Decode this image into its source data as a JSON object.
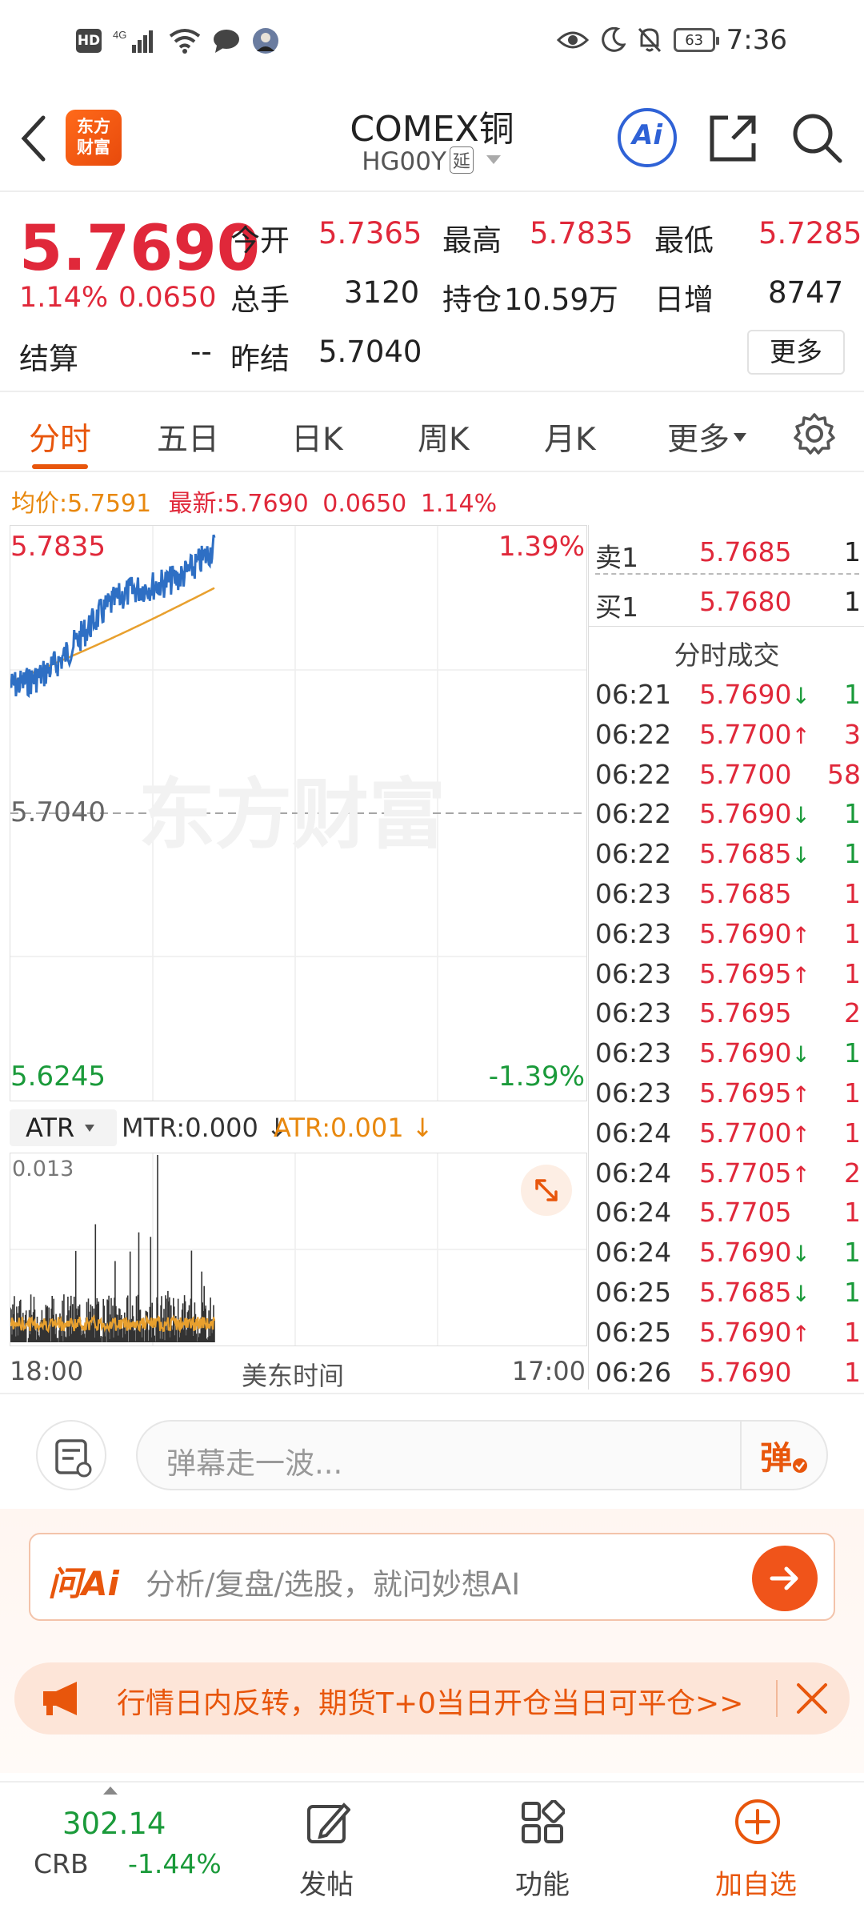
{
  "status_bar": {
    "time": "7:36",
    "battery": "63",
    "hd": "HD",
    "net": "4G"
  },
  "header": {
    "title": "COMEX铜",
    "code": "HG00Y",
    "delay_badge": "延",
    "logo_line1": "东方",
    "logo_line2": "财富",
    "ai_label": "Ai"
  },
  "quote": {
    "price": "5.7690",
    "pct": "1.14%",
    "chg": "0.0650",
    "open_label": "今开",
    "open": "5.7365",
    "high_label": "最高",
    "high": "5.7835",
    "low_label": "最低",
    "low": "5.7285",
    "volume_label": "总手",
    "volume": "3120",
    "oi_label": "持仓",
    "oi": "10.59万",
    "daily_inc_label": "日增",
    "daily_inc": "8747",
    "settle_label": "结算",
    "settle": "--",
    "prev_settle_label": "昨结",
    "prev_settle": "5.7040",
    "more_label": "更多"
  },
  "tabs": [
    "分时",
    "五日",
    "日K",
    "周K",
    "月K",
    "更多"
  ],
  "avg_line": {
    "avg_label": "均价:",
    "avg": "5.7591",
    "latest_label": "最新:",
    "latest": "5.7690",
    "chg": "0.0650",
    "pct": "1.14%"
  },
  "chart": {
    "top_price": "5.7835",
    "top_pct": "1.39%",
    "mid_price": "5.7040",
    "bottom_price": "5.6245",
    "bottom_pct": "-1.39%",
    "watermark": "东方财富",
    "ymax": 5.7835,
    "ymin": 5.6245
  },
  "atr": {
    "selector": "ATR",
    "mtr_label": "MTR:0.000",
    "atr_label": "ATR:0.001",
    "max_label": "0.013"
  },
  "time_axis": {
    "start": "18:00",
    "mid": "美东时间",
    "end": "17:00"
  },
  "book": {
    "ask_label": "卖1",
    "ask_price": "5.7685",
    "ask_vol": "1",
    "bid_label": "买1",
    "bid_price": "5.7680",
    "bid_vol": "1",
    "trades_title": "分时成交",
    "trades": [
      {
        "time": "06:21",
        "price": "5.7690",
        "dir": "down",
        "vol": "1"
      },
      {
        "time": "06:22",
        "price": "5.7700",
        "dir": "up",
        "vol": "3"
      },
      {
        "time": "06:22",
        "price": "5.7700",
        "dir": "",
        "vol": "58"
      },
      {
        "time": "06:22",
        "price": "5.7690",
        "dir": "down",
        "vol": "1"
      },
      {
        "time": "06:22",
        "price": "5.7685",
        "dir": "down",
        "vol": "1"
      },
      {
        "time": "06:23",
        "price": "5.7685",
        "dir": "",
        "vol": "1"
      },
      {
        "time": "06:23",
        "price": "5.7690",
        "dir": "up",
        "vol": "1"
      },
      {
        "time": "06:23",
        "price": "5.7695",
        "dir": "up",
        "vol": "1"
      },
      {
        "time": "06:23",
        "price": "5.7695",
        "dir": "",
        "vol": "2"
      },
      {
        "time": "06:23",
        "price": "5.7690",
        "dir": "down",
        "vol": "1"
      },
      {
        "time": "06:23",
        "price": "5.7695",
        "dir": "up",
        "vol": "1"
      },
      {
        "time": "06:24",
        "price": "5.7700",
        "dir": "up",
        "vol": "1"
      },
      {
        "time": "06:24",
        "price": "5.7705",
        "dir": "up",
        "vol": "2"
      },
      {
        "time": "06:24",
        "price": "5.7705",
        "dir": "",
        "vol": "1"
      },
      {
        "time": "06:24",
        "price": "5.7690",
        "dir": "down",
        "vol": "1"
      },
      {
        "time": "06:25",
        "price": "5.7685",
        "dir": "down",
        "vol": "1"
      },
      {
        "time": "06:25",
        "price": "5.7690",
        "dir": "up",
        "vol": "1"
      },
      {
        "time": "06:26",
        "price": "5.7690",
        "dir": "",
        "vol": "1"
      }
    ]
  },
  "comment": {
    "placeholder": "弹幕走一波...",
    "danmu_btn": "弹"
  },
  "ai_box": {
    "label": "问Ai",
    "placeholder": "分析/复盘/选股，就问妙想AI"
  },
  "notice": {
    "text": "行情日内反转，期货T+0当日开仓当日可平仓>>"
  },
  "bottom_nav": {
    "crb_value": "302.14",
    "crb_label": "CRB",
    "crb_pct": "-1.44%",
    "post_label": "发帖",
    "func_label": "功能",
    "watch_label": "加自选"
  },
  "colors": {
    "up": "#e0283a",
    "down": "#1a9a3a",
    "accent": "#e8560c",
    "line": "#2e6fc4",
    "avg": "#e8a02e"
  }
}
